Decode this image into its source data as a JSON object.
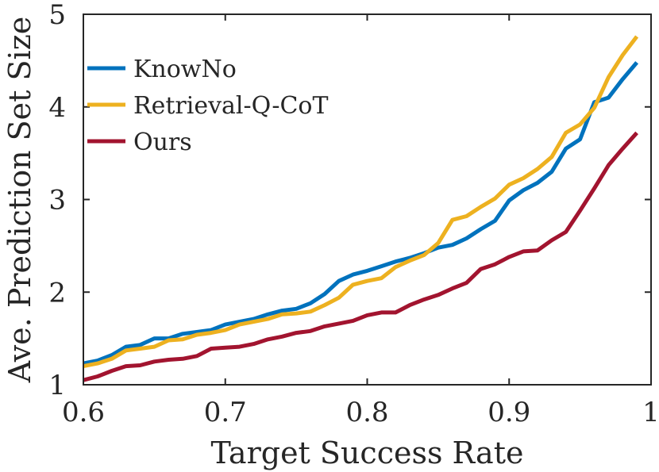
{
  "chart_data": {
    "type": "line",
    "title": "",
    "xlabel": "Target Success Rate",
    "ylabel": "Ave. Prediction Set Size",
    "xlim": [
      0.6,
      1.0
    ],
    "ylim": [
      1,
      5
    ],
    "xticks": [
      0.6,
      0.7,
      0.8,
      0.9,
      1.0
    ],
    "xtick_labels": [
      "0.6",
      "0.7",
      "0.8",
      "0.9",
      "1"
    ],
    "yticks": [
      1,
      2,
      3,
      4,
      5
    ],
    "ytick_labels": [
      "1",
      "2",
      "3",
      "4",
      "5"
    ],
    "grid": false,
    "legend_position": "top-left",
    "x": [
      0.6,
      0.61,
      0.62,
      0.63,
      0.64,
      0.65,
      0.66,
      0.67,
      0.68,
      0.69,
      0.7,
      0.71,
      0.72,
      0.73,
      0.74,
      0.75,
      0.76,
      0.77,
      0.78,
      0.79,
      0.8,
      0.81,
      0.82,
      0.83,
      0.84,
      0.85,
      0.86,
      0.87,
      0.88,
      0.89,
      0.9,
      0.91,
      0.92,
      0.93,
      0.94,
      0.95,
      0.96,
      0.97,
      0.98,
      0.99
    ],
    "series": [
      {
        "name": "KnowNo",
        "color": "#0072BD",
        "values": [
          1.23,
          1.26,
          1.32,
          1.41,
          1.43,
          1.5,
          1.5,
          1.55,
          1.57,
          1.59,
          1.65,
          1.68,
          1.71,
          1.76,
          1.8,
          1.82,
          1.88,
          1.98,
          2.12,
          2.19,
          2.23,
          2.28,
          2.33,
          2.37,
          2.42,
          2.48,
          2.51,
          2.58,
          2.68,
          2.77,
          2.99,
          3.1,
          3.18,
          3.3,
          3.55,
          3.65,
          4.05,
          4.1,
          4.3,
          4.48
        ]
      },
      {
        "name": "Retrieval-Q-CoT",
        "color": "#EDB120",
        "values": [
          1.2,
          1.23,
          1.28,
          1.37,
          1.39,
          1.41,
          1.48,
          1.49,
          1.54,
          1.56,
          1.59,
          1.65,
          1.68,
          1.71,
          1.76,
          1.77,
          1.79,
          1.86,
          1.94,
          2.08,
          2.12,
          2.15,
          2.27,
          2.34,
          2.4,
          2.53,
          2.78,
          2.82,
          2.92,
          3.01,
          3.16,
          3.23,
          3.33,
          3.46,
          3.72,
          3.81,
          3.99,
          4.32,
          4.56,
          4.76
        ]
      },
      {
        "name": "Ours",
        "color": "#A2142F",
        "values": [
          1.05,
          1.09,
          1.15,
          1.2,
          1.21,
          1.25,
          1.27,
          1.28,
          1.31,
          1.39,
          1.4,
          1.41,
          1.44,
          1.49,
          1.52,
          1.56,
          1.58,
          1.63,
          1.66,
          1.69,
          1.75,
          1.78,
          1.78,
          1.86,
          1.92,
          1.97,
          2.04,
          2.1,
          2.25,
          2.3,
          2.38,
          2.44,
          2.45,
          2.56,
          2.65,
          2.88,
          3.12,
          3.37,
          3.55,
          3.72
        ]
      }
    ]
  }
}
